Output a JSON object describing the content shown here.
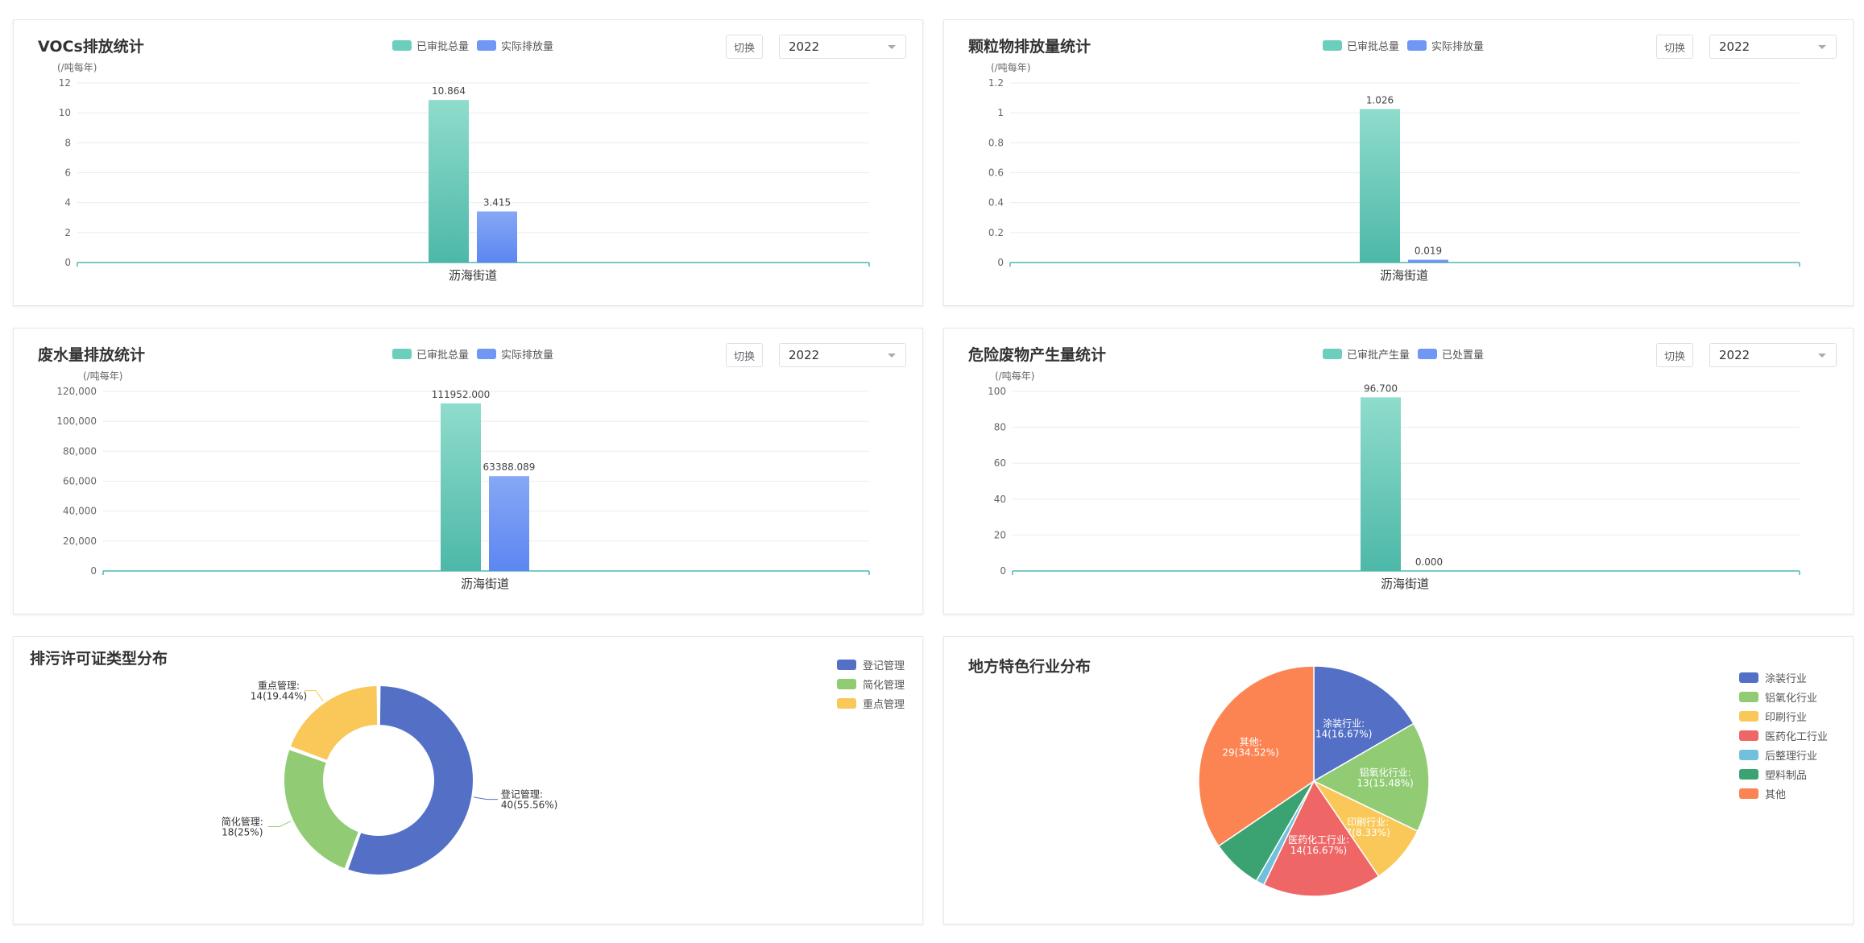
{
  "chart_data": [
    {
      "id": "vocs",
      "type": "bar",
      "title": "VOCs排放统计",
      "unit": "(/吨每年)",
      "categories": [
        "沥海街道"
      ],
      "series": [
        {
          "name": "已审批总量",
          "values": [
            10.864
          ],
          "labels": [
            "10.864"
          ]
        },
        {
          "name": "实际排放量",
          "values": [
            3.415
          ],
          "labels": [
            "3.415"
          ]
        }
      ],
      "ylim": [
        0,
        12
      ],
      "yticks": [
        "0",
        "2",
        "4",
        "6",
        "8",
        "10",
        "12"
      ],
      "switch_label": "切换",
      "year": "2022"
    },
    {
      "id": "particulate",
      "type": "bar",
      "title": "颗粒物排放量统计",
      "unit": "(/吨每年)",
      "categories": [
        "沥海街道"
      ],
      "series": [
        {
          "name": "已审批总量",
          "values": [
            1.026
          ],
          "labels": [
            "1.026"
          ]
        },
        {
          "name": "实际排放量",
          "values": [
            0.019
          ],
          "labels": [
            "0.019"
          ]
        }
      ],
      "ylim": [
        0,
        1.2
      ],
      "yticks": [
        "0",
        "0.2",
        "0.4",
        "0.6",
        "0.8",
        "1",
        "1.2"
      ],
      "switch_label": "切换",
      "year": "2022"
    },
    {
      "id": "wastewater",
      "type": "bar",
      "title": "废水量排放统计",
      "unit": "(/吨每年)",
      "categories": [
        "沥海街道"
      ],
      "series": [
        {
          "name": "已审批总量",
          "values": [
            111952.0
          ],
          "labels": [
            "111952.000"
          ]
        },
        {
          "name": "实际排放量",
          "values": [
            63388.089
          ],
          "labels": [
            "63388.089"
          ]
        }
      ],
      "ylim": [
        0,
        120000
      ],
      "yticks": [
        "0",
        "20,000",
        "40,000",
        "60,000",
        "80,000",
        "100,000",
        "120,000"
      ],
      "switch_label": "切换",
      "year": "2022"
    },
    {
      "id": "hazardous",
      "type": "bar",
      "title": "危险废物产生量统计",
      "unit": "(/吨每年)",
      "categories": [
        "沥海街道"
      ],
      "series": [
        {
          "name": "已审批产生量",
          "values": [
            96.7
          ],
          "labels": [
            "96.700"
          ]
        },
        {
          "name": "已处置量",
          "values": [
            0.0
          ],
          "labels": [
            "0.000"
          ]
        }
      ],
      "ylim": [
        0,
        100
      ],
      "yticks": [
        "0",
        "20",
        "40",
        "60",
        "80",
        "100"
      ],
      "switch_label": "切换",
      "year": "2022"
    },
    {
      "id": "permit",
      "type": "pie",
      "style": "donut",
      "title": "排污许可证类型分布",
      "slices": [
        {
          "name": "登记管理",
          "value": 40,
          "label": "登记管理:",
          "sublabel": "40(55.56%)",
          "color": "#5470c6"
        },
        {
          "name": "简化管理",
          "value": 18,
          "label": "简化管理:",
          "sublabel": "18(25%)",
          "color": "#91cc75"
        },
        {
          "name": "重点管理",
          "value": 14,
          "label": "重点管理:",
          "sublabel": "14(19.44%)",
          "color": "#fac858"
        }
      ],
      "legend_position": "top-right"
    },
    {
      "id": "industry",
      "type": "pie",
      "title": "地方特色行业分布",
      "slices": [
        {
          "name": "涂装行业",
          "value": 14,
          "label": "涂装行业:",
          "sublabel": "14(16.67%)",
          "color": "#5470c6"
        },
        {
          "name": "铝氧化行业",
          "value": 13,
          "label": "铝氧化行业:",
          "sublabel": "13(15.48%)",
          "color": "#91cc75"
        },
        {
          "name": "印刷行业",
          "value": 7,
          "label": "印刷行业:",
          "sublabel": "7(8.33%)",
          "color": "#fac858"
        },
        {
          "name": "医药化工行业",
          "value": 14,
          "label": "医药化工行业:",
          "sublabel": "14(16.67%)",
          "color": "#ee6666"
        },
        {
          "name": "后整理行业",
          "value": 1,
          "label": "",
          "sublabel": "",
          "color": "#73c0de"
        },
        {
          "name": "塑料制品",
          "value": 6,
          "label": "",
          "sublabel": "",
          "color": "#3ba272"
        },
        {
          "name": "其他",
          "value": 29,
          "label": "其他:",
          "sublabel": "29(34.52%)",
          "color": "#fc8452"
        }
      ],
      "legend_position": "right"
    }
  ],
  "colors": {
    "bar_a_top": "#8fdccc",
    "bar_a_bottom": "#4db8a8",
    "bar_b_top": "#86a8f5",
    "bar_b_bottom": "#5c86f2",
    "axis": "#4fb8b0",
    "grid": "#e9ecef"
  }
}
